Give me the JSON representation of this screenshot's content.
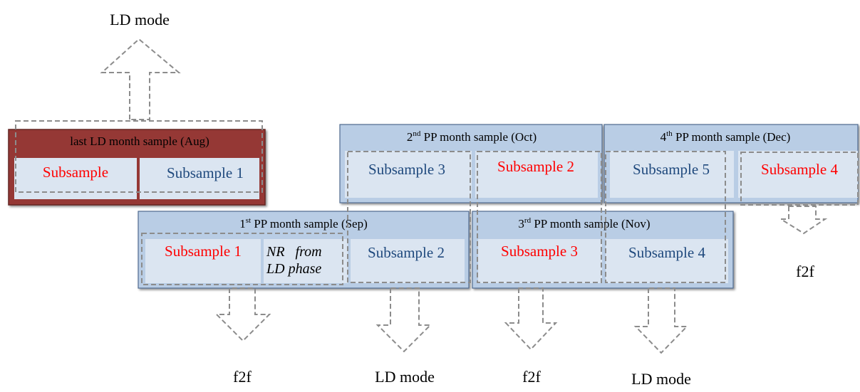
{
  "colors": {
    "ld_block": "#953735",
    "ld_block_dark": "#632523",
    "pp_block": "#b9cde5",
    "pp_block_border": "#4f6b8f",
    "sub_cell": "#dbe5f1",
    "text_red": "#ff0000",
    "text_blue": "#1f497d",
    "dashed": "#8c8c8c"
  },
  "blocks": {
    "aug": {
      "title": "last LD month sample (Aug)",
      "sub1": "Subsample",
      "sub2": "Subsample 1"
    },
    "sep": {
      "ord": "1",
      "sup": "st",
      "rest": " PP month sample (Sep)",
      "sub1": "Subsample 1",
      "nr_line1": "NR   from",
      "nr_line2": "LD phase",
      "sub2": "Subsample 2"
    },
    "oct": {
      "ord": "2",
      "sup": "nd",
      "rest": " PP month sample (Oct)",
      "sub1": "Subsample 3",
      "sub2": "Subsample 2"
    },
    "nov": {
      "ord": "3",
      "sup": "rd",
      "rest": " PP month sample (Nov)",
      "sub1": "Subsample 3",
      "sub2": "Subsample 4"
    },
    "dec": {
      "ord": "4",
      "sup": "th",
      "rest": " PP month sample (Dec)",
      "sub1": "Subsample 5",
      "sub2": "Subsample 4"
    }
  },
  "arrow_labels": {
    "top_ld": "LD mode",
    "f2f_1": "f2f",
    "ld_1": "LD mode",
    "f2f_2": "f2f",
    "ld_2": "LD mode",
    "f2f_3": "f2f"
  }
}
